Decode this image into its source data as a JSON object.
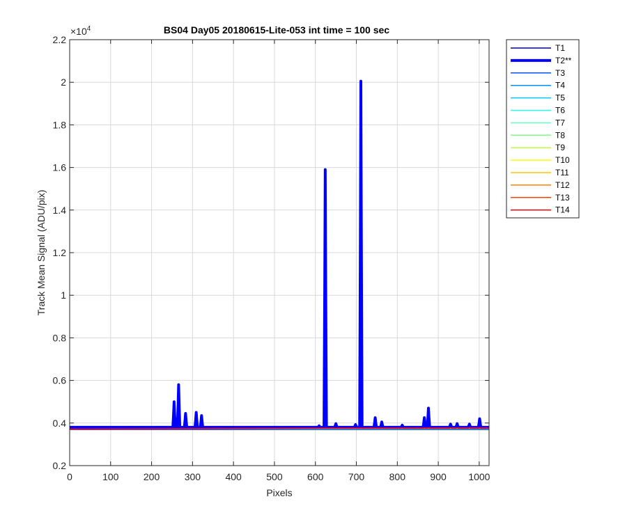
{
  "chart_data": {
    "type": "line",
    "title": "BS04 Day05 20180615-Lite-053 int time = 100 sec",
    "xlabel": "Pixels",
    "ylabel": "Track Mean Signal (ADU/pix)",
    "y_exponent_label": "×10",
    "y_exponent": "4",
    "xlim": [
      0,
      1024
    ],
    "ylim": [
      2000,
      22000
    ],
    "x_ticks": [
      0,
      100,
      200,
      300,
      400,
      500,
      600,
      700,
      800,
      900,
      1000
    ],
    "x_tick_labels": [
      "0",
      "100",
      "200",
      "300",
      "400",
      "500",
      "600",
      "700",
      "800",
      "900",
      "1000"
    ],
    "y_ticks": [
      2000,
      4000,
      6000,
      8000,
      10000,
      12000,
      14000,
      16000,
      18000,
      20000,
      22000
    ],
    "y_tick_labels": [
      "0.2",
      "0.4",
      "0.6",
      "0.8",
      "1",
      "1.2",
      "1.4",
      "1.6",
      "1.8",
      "2",
      "2.2"
    ],
    "grid": true,
    "legend_position": "outside-right",
    "series": [
      {
        "name": "T1",
        "color": "#00008f",
        "width": 1.5,
        "start": 3700,
        "end": 3700
      },
      {
        "name": "T2**",
        "color": "#0000ff",
        "width": 4,
        "baseline": 3800,
        "peaks": [
          [
            255,
            5000
          ],
          [
            266,
            5800
          ],
          [
            283,
            4450
          ],
          [
            309,
            4500
          ],
          [
            322,
            4350
          ],
          [
            609,
            3870
          ],
          [
            624,
            15900
          ],
          [
            650,
            3970
          ],
          [
            698,
            3930
          ],
          [
            711,
            20050
          ],
          [
            746,
            4250
          ],
          [
            762,
            4050
          ],
          [
            812,
            3900
          ],
          [
            866,
            4250
          ],
          [
            876,
            4700
          ],
          [
            930,
            3950
          ],
          [
            946,
            3970
          ],
          [
            976,
            3950
          ],
          [
            1001,
            4200
          ]
        ]
      },
      {
        "name": "T3",
        "color": "#0050ff",
        "width": 1.5,
        "start": 3720,
        "end": 3720
      },
      {
        "name": "T4",
        "color": "#0090ff",
        "width": 1.5,
        "start": 3730,
        "end": 3730
      },
      {
        "name": "T5",
        "color": "#00c8ff",
        "width": 1.5,
        "start": 3740,
        "end": 3740
      },
      {
        "name": "T6",
        "color": "#20ffdf",
        "width": 1.5,
        "start": 3745,
        "end": 3745
      },
      {
        "name": "T7",
        "color": "#60ffbf",
        "width": 1.5,
        "start": 3750,
        "end": 3750
      },
      {
        "name": "T8",
        "color": "#80ff80",
        "width": 1.5,
        "start": 3750,
        "end": 3750
      },
      {
        "name": "T9",
        "color": "#bfff40",
        "width": 1.5,
        "start": 3755,
        "end": 3755
      },
      {
        "name": "T10",
        "color": "#ffff00",
        "width": 1.5,
        "start": 3755,
        "end": 3755
      },
      {
        "name": "T11",
        "color": "#ffc000",
        "width": 1.5,
        "start": 3760,
        "end": 3760
      },
      {
        "name": "T12",
        "color": "#ff8000",
        "width": 1.5,
        "start": 3760,
        "end": 3760
      },
      {
        "name": "T13",
        "color": "#ff4000",
        "width": 1.5,
        "start": 3765,
        "end": 3765
      },
      {
        "name": "T14",
        "color": "#ff0000",
        "width": 1.5,
        "start": 3720,
        "end": 3780
      }
    ]
  }
}
